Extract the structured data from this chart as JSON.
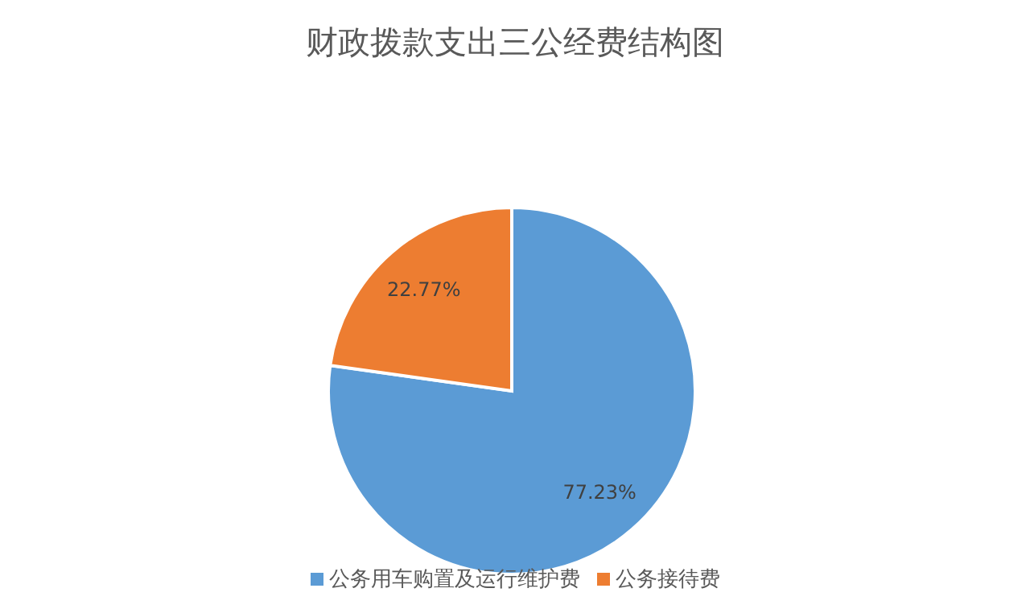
{
  "chart_data": {
    "type": "pie",
    "title": "财政拨款支出三公经费结构图",
    "categories": [
      "公务用车购置及运行维护费",
      "公务接待费"
    ],
    "values": [
      77.23,
      22.77
    ],
    "colors": [
      "#5b9bd5",
      "#ed7d31"
    ],
    "value_labels": [
      "77.23%",
      "22.77%"
    ],
    "legend": "bottom"
  }
}
